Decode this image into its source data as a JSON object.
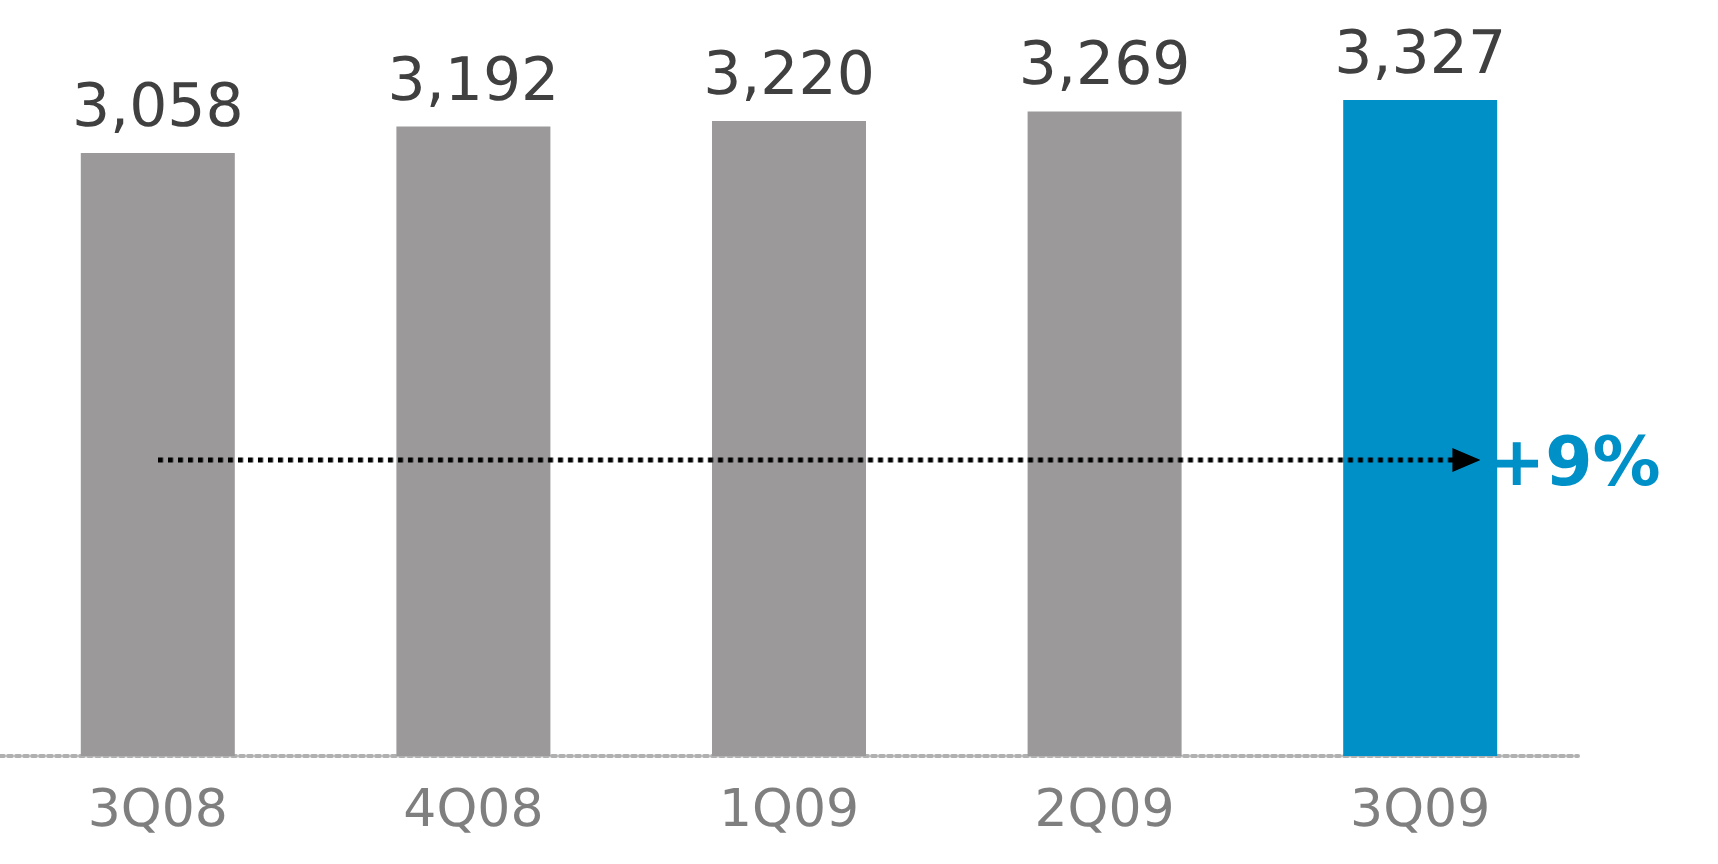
{
  "chart_data": {
    "type": "bar",
    "categories": [
      "3Q08",
      "4Q08",
      "1Q09",
      "2Q09",
      "3Q09"
    ],
    "values": [
      3058,
      3192,
      3220,
      3269,
      3327
    ],
    "colors": [
      "#9b9999",
      "#9b9999",
      "#9b9999",
      "#9b9999",
      "#0090c8"
    ],
    "value_labels": [
      "3,058",
      "3,192",
      "3,220",
      "3,269",
      "3,327"
    ],
    "annotations": [
      "+9%"
    ]
  }
}
